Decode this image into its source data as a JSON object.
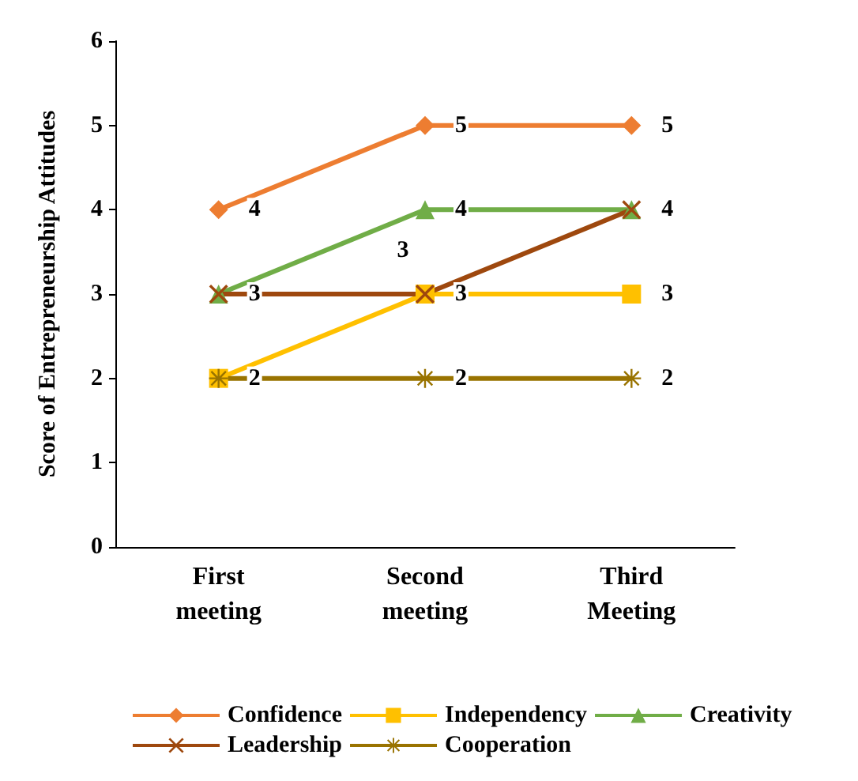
{
  "chart_data": {
    "type": "line",
    "ylabel": "Score of Entrepreneurship Attitudes",
    "categories": [
      "First meeting",
      "Second meeting",
      "Third Meeting"
    ],
    "series": [
      {
        "name": "Confidence",
        "color": "#ed7d31",
        "marker": "diamond",
        "values": [
          4,
          5,
          5
        ],
        "value_labels": [
          "4",
          "5",
          "5"
        ]
      },
      {
        "name": "Independency",
        "color": "#ffc000",
        "marker": "square",
        "values": [
          2,
          3,
          3
        ],
        "value_labels": [
          "2",
          "3",
          "3"
        ]
      },
      {
        "name": "Creativity",
        "color": "#70ad47",
        "marker": "triangle",
        "values": [
          3,
          4,
          4
        ],
        "value_labels": [
          "3",
          "4",
          "4"
        ]
      },
      {
        "name": "Leadership",
        "color": "#9e480e",
        "marker": "cross",
        "values": [
          3,
          3,
          4
        ],
        "value_labels": [
          null,
          "3",
          null
        ]
      },
      {
        "name": "Cooperation",
        "color": "#997300",
        "marker": "star",
        "values": [
          2,
          2,
          2
        ],
        "value_labels": [
          null,
          "2",
          "2"
        ]
      }
    ],
    "ylim": [
      0,
      6
    ],
    "yticks": [
      0,
      1,
      2,
      3,
      4,
      5,
      6
    ],
    "grid": false,
    "legend": "bottom",
    "line_style": "solid"
  }
}
